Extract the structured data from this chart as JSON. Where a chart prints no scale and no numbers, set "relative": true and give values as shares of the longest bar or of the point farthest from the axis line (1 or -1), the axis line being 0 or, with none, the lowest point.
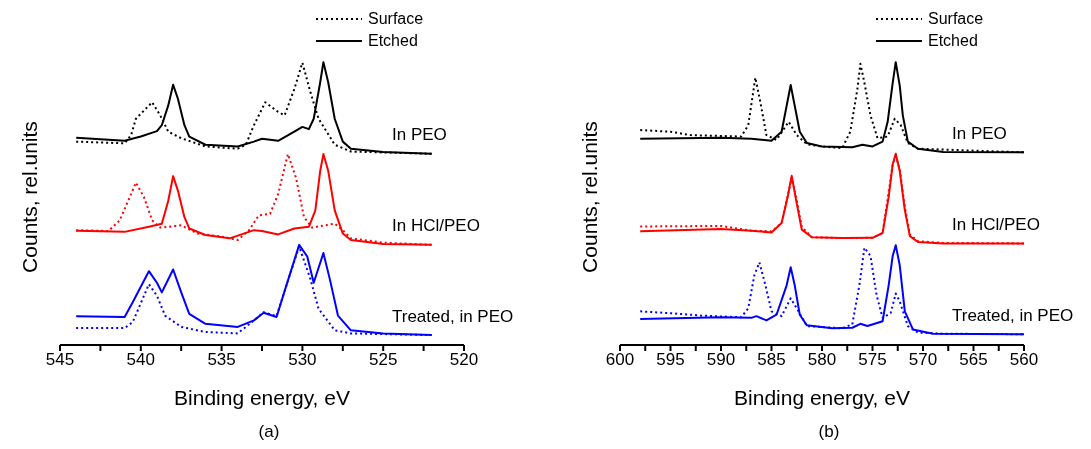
{
  "chart_data": [
    {
      "type": "line",
      "title": "(a)",
      "xlabel": "Binding energy, eV",
      "ylabel": "Counts, rel.units",
      "relative": true,
      "legend": "top right",
      "xlim": [
        545,
        520
      ],
      "xticks": [
        545,
        {
          "value": 542.5,
          "label": null
        },
        540,
        {
          "value": 537.5,
          "label": null
        },
        535,
        {
          "value": 532.5,
          "label": null
        },
        530,
        {
          "value": 527.5,
          "label": null
        },
        525,
        {
          "value": 522.5,
          "label": null
        },
        520
      ],
      "annotations": [
        "In PEO",
        "In HCl/PEO",
        "Treated, in PEO"
      ],
      "series": [
        {
          "name": "Surface",
          "color": "#000000",
          "line_style": "dotted",
          "x": [
            544,
            541,
            540.6,
            540.3,
            539.3,
            538.8,
            538.3,
            537.5,
            536,
            534,
            533.5,
            533,
            532.3,
            531.5,
            531.1,
            530.5,
            530,
            529.5,
            529,
            528.5,
            528,
            527,
            522
          ],
          "values": [
            0.719,
            0.713,
            0.742,
            0.8,
            0.858,
            0.812,
            0.754,
            0.731,
            0.702,
            0.694,
            0.708,
            0.777,
            0.858,
            0.824,
            0.812,
            0.905,
            0.998,
            0.893,
            0.8,
            0.754,
            0.708,
            0.684,
            0.676
          ]
        },
        {
          "name": "Etched",
          "color": "#000000",
          "line_style": "solid",
          "x": [
            544,
            541,
            540,
            539,
            538.7,
            538.3,
            538,
            537.7,
            537.3,
            537,
            536,
            534,
            533,
            532.5,
            531.5,
            530.5,
            530,
            529.6,
            529.3,
            528.9,
            528.7,
            528.4,
            528,
            527.5,
            527,
            525,
            522
          ],
          "values": [
            0.733,
            0.722,
            0.737,
            0.756,
            0.777,
            0.847,
            0.92,
            0.87,
            0.777,
            0.737,
            0.708,
            0.702,
            0.719,
            0.729,
            0.722,
            0.754,
            0.771,
            0.763,
            0.8,
            0.928,
            1,
            0.928,
            0.8,
            0.719,
            0.694,
            0.682,
            0.676
          ]
        },
        {
          "color": "#ff0000",
          "line_style": "dotted",
          "x": [
            544,
            542,
            541.3,
            540.3,
            539.8,
            539.3,
            538.8,
            537.5,
            536.5,
            535,
            534,
            533.3,
            532.7,
            532,
            531.5,
            530.9,
            530.4,
            529.9,
            529.4,
            528,
            527.5,
            527,
            525,
            522
          ],
          "values": [
            0.406,
            0.403,
            0.441,
            0.574,
            0.522,
            0.441,
            0.415,
            0.423,
            0.394,
            0.383,
            0.371,
            0.406,
            0.458,
            0.464,
            0.534,
            0.675,
            0.592,
            0.452,
            0.415,
            0.429,
            0.406,
            0.377,
            0.362,
            0.354
          ]
        },
        {
          "color": "#ff0000",
          "line_style": "solid",
          "x": [
            544,
            541,
            539.5,
            538.7,
            538.3,
            538,
            537.7,
            537.3,
            537,
            536,
            534.5,
            533,
            532.5,
            531.5,
            530.5,
            529.6,
            529.2,
            528.9,
            528.7,
            528.4,
            528,
            527.5,
            527,
            525,
            522
          ],
          "values": [
            0.404,
            0.4,
            0.418,
            0.429,
            0.51,
            0.597,
            0.545,
            0.452,
            0.412,
            0.389,
            0.377,
            0.406,
            0.403,
            0.391,
            0.412,
            0.418,
            0.476,
            0.615,
            0.675,
            0.615,
            0.476,
            0.394,
            0.371,
            0.357,
            0.354
          ]
        },
        {
          "color": "#0000ff",
          "line_style": "dotted",
          "x": [
            544,
            541,
            540.5,
            539.5,
            539,
            538.5,
            537.5,
            536,
            534,
            533,
            532.4,
            531.6,
            531,
            530.2,
            529.5,
            529,
            528,
            527,
            522
          ],
          "values": [
            0.06,
            0.06,
            0.081,
            0.215,
            0.174,
            0.104,
            0.064,
            0.046,
            0.041,
            0.087,
            0.116,
            0.102,
            0.209,
            0.348,
            0.232,
            0.128,
            0.052,
            0.041,
            0.035
          ]
        },
        {
          "color": "#0000ff",
          "line_style": "solid",
          "x": [
            544,
            541,
            540.5,
            539.5,
            539,
            538.7,
            538,
            537.5,
            537,
            536,
            534,
            533,
            532.4,
            531.6,
            531,
            530.2,
            529.7,
            529.3,
            528.7,
            528.3,
            527.8,
            527,
            525,
            522
          ],
          "values": [
            0.102,
            0.099,
            0.151,
            0.261,
            0.22,
            0.186,
            0.267,
            0.186,
            0.11,
            0.075,
            0.064,
            0.087,
            0.114,
            0.099,
            0.209,
            0.354,
            0.313,
            0.22,
            0.325,
            0.232,
            0.104,
            0.052,
            0.041,
            0.035
          ]
        }
      ]
    },
    {
      "type": "line",
      "title": "(b)",
      "xlabel": "Binding energy, eV",
      "ylabel": "Counts, rel.units",
      "relative": true,
      "legend": "top right",
      "xlim": [
        600,
        560
      ],
      "xticks": [
        600,
        {
          "value": 597.5,
          "label": null
        },
        595,
        {
          "value": 592.5,
          "label": null
        },
        590,
        {
          "value": 587.5,
          "label": null
        },
        585,
        {
          "value": 582.5,
          "label": null
        },
        580,
        {
          "value": 577.5,
          "label": null
        },
        575,
        {
          "value": 572.5,
          "label": null
        },
        570,
        {
          "value": 567.5,
          "label": null
        },
        565,
        {
          "value": 562.5,
          "label": null
        },
        560
      ],
      "annotations": [
        "In PEO",
        "In HCl/PEO",
        "Treated, in PEO"
      ],
      "series": [
        {
          "name": "Surface",
          "color": "#000000",
          "line_style": "dotted",
          "x": [
            598,
            595,
            593,
            588,
            587.3,
            586.6,
            586.1,
            585.5,
            584.5,
            583.3,
            582.5,
            581.5,
            580,
            578,
            577.2,
            576.5,
            576.2,
            575.8,
            575.2,
            574.5,
            573.5,
            572.8,
            572.2,
            571.5,
            570.5,
            560
          ],
          "values": [
            0.76,
            0.754,
            0.742,
            0.737,
            0.777,
            0.945,
            0.858,
            0.742,
            0.725,
            0.789,
            0.742,
            0.71,
            0.702,
            0.696,
            0.754,
            0.904,
            0.994,
            0.927,
            0.812,
            0.731,
            0.737,
            0.8,
            0.777,
            0.714,
            0.694,
            0.681
          ]
        },
        {
          "name": "Etched",
          "color": "#000000",
          "line_style": "solid",
          "x": [
            598,
            590,
            587,
            585,
            584,
            583.5,
            583.1,
            582.7,
            582.2,
            581.5,
            580,
            577,
            576,
            575,
            574,
            573.5,
            573,
            572.7,
            572.3,
            572,
            571.5,
            570.5,
            568,
            560
          ],
          "values": [
            0.729,
            0.733,
            0.729,
            0.722,
            0.754,
            0.846,
            0.919,
            0.846,
            0.754,
            0.714,
            0.702,
            0.699,
            0.708,
            0.702,
            0.719,
            0.789,
            0.927,
            1,
            0.916,
            0.812,
            0.719,
            0.694,
            0.682,
            0.681
          ]
        },
        {
          "color": "#ff0000",
          "line_style": "dotted",
          "x": [
            598,
            590,
            587,
            585,
            584,
            583,
            582.5,
            582,
            581,
            578,
            575,
            574,
            573,
            572.7,
            572.3,
            571.8,
            571.3,
            570.5,
            568,
            560
          ],
          "values": [
            0.419,
            0.421,
            0.404,
            0.402,
            0.431,
            0.592,
            0.512,
            0.417,
            0.381,
            0.378,
            0.379,
            0.396,
            0.639,
            0.667,
            0.621,
            0.488,
            0.39,
            0.367,
            0.361,
            0.359
          ]
        },
        {
          "color": "#ff0000",
          "line_style": "solid",
          "x": [
            598,
            590,
            587,
            585,
            584,
            583.4,
            583,
            582.5,
            582,
            581,
            578,
            575,
            574,
            573.4,
            573,
            572.7,
            572.3,
            571.8,
            571.3,
            570.5,
            568,
            560
          ],
          "values": [
            0.402,
            0.41,
            0.404,
            0.398,
            0.431,
            0.523,
            0.598,
            0.5,
            0.408,
            0.381,
            0.378,
            0.379,
            0.396,
            0.523,
            0.639,
            0.676,
            0.615,
            0.477,
            0.385,
            0.364,
            0.359,
            0.359
          ]
        },
        {
          "color": "#0000ff",
          "line_style": "dotted",
          "x": [
            598,
            594,
            592,
            588,
            587.3,
            586.7,
            586.2,
            585.6,
            585,
            584,
            583.1,
            582.5,
            581.5,
            578,
            577,
            576.3,
            575.8,
            575.2,
            574.6,
            574,
            573.2,
            572.7,
            572.3,
            571.5,
            570.5,
            568,
            560
          ],
          "values": [
            0.119,
            0.11,
            0.104,
            0.098,
            0.13,
            0.246,
            0.292,
            0.211,
            0.119,
            0.102,
            0.165,
            0.13,
            0.067,
            0.059,
            0.073,
            0.211,
            0.344,
            0.315,
            0.177,
            0.096,
            0.113,
            0.182,
            0.154,
            0.067,
            0.044,
            0.04,
            0.038
          ]
        },
        {
          "color": "#0000ff",
          "line_style": "solid",
          "x": [
            598,
            590,
            587,
            586.5,
            585.5,
            584.5,
            583.5,
            583.1,
            582.7,
            582.2,
            581.5,
            579,
            577,
            576.2,
            575.5,
            574,
            573.4,
            573,
            572.7,
            572.3,
            571.8,
            571,
            569,
            560
          ],
          "values": [
            0.092,
            0.098,
            0.096,
            0.102,
            0.087,
            0.107,
            0.211,
            0.275,
            0.211,
            0.107,
            0.07,
            0.059,
            0.061,
            0.075,
            0.067,
            0.084,
            0.211,
            0.315,
            0.353,
            0.281,
            0.119,
            0.055,
            0.04,
            0.038
          ]
        }
      ]
    }
  ]
}
